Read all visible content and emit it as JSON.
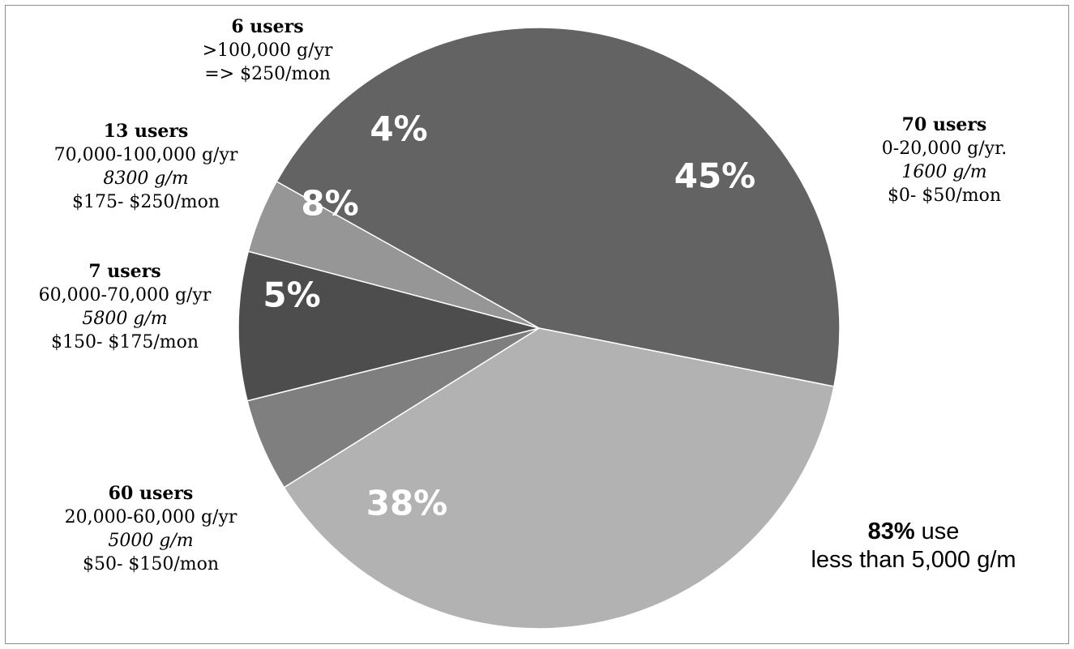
{
  "chart_data": {
    "type": "pie",
    "slices": [
      {
        "pct_label": "45%",
        "value": 45,
        "color": "#636363",
        "label": {
          "users": "70 users",
          "range": "0-20,000 g/yr.",
          "gpm": "1600 g/m",
          "price": "$0- $50/mon"
        }
      },
      {
        "pct_label": "38%",
        "value": 38,
        "color": "#b2b2b2",
        "label": {
          "users": "60 users",
          "range": "20,000-60,000 g/yr",
          "gpm": "5000 g/m",
          "price": "$50- $150/mon"
        }
      },
      {
        "pct_label": "5%",
        "value": 5,
        "color": "#7f7f7f",
        "label": {
          "users": "7 users",
          "range": "60,000-70,000 g/yr",
          "gpm": "5800 g/m",
          "price": "$150- $175/mon"
        }
      },
      {
        "pct_label": "8%",
        "value": 8,
        "color": "#4d4d4d",
        "label": {
          "users": "13 users",
          "range": "70,000-100,000 g/yr",
          "gpm": "8300 g/m",
          "price": "$175- $250/mon"
        }
      },
      {
        "pct_label": "4%",
        "value": 4,
        "color": "#969696",
        "label": {
          "users": "6 users",
          "range": ">100,000 g/yr",
          "gpm": "",
          "price": "=> $250/mon"
        }
      }
    ]
  },
  "annotation": {
    "bold": "83%",
    "rest_line1": " use",
    "line2": "less than 5,000 g/m"
  }
}
